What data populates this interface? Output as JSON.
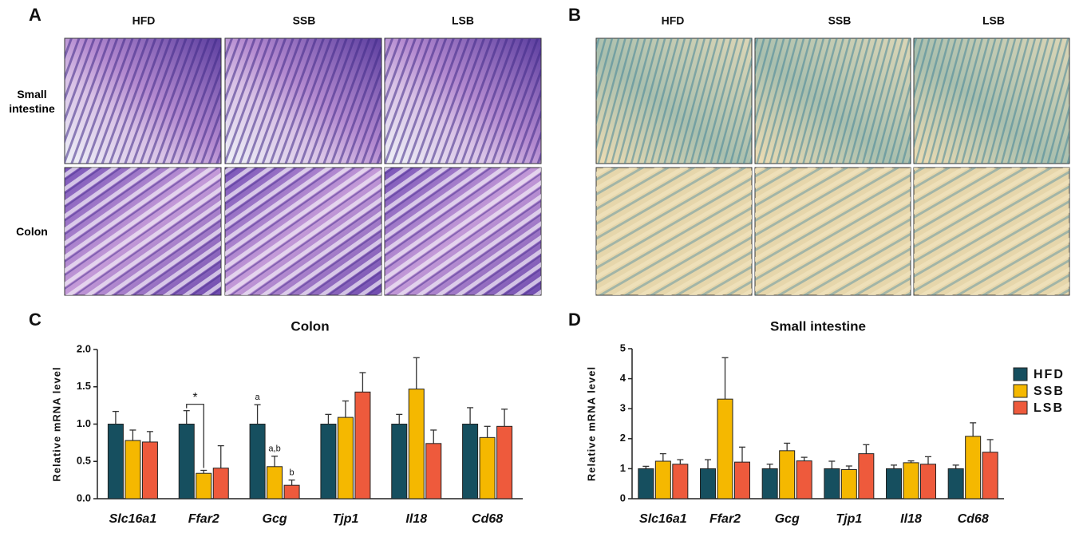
{
  "panels": [
    {
      "label": "A",
      "columns": [
        "HFD",
        "SSB",
        "LSB"
      ],
      "rows": [
        "Small intestine",
        "Colon"
      ]
    },
    {
      "label": "B",
      "columns": [
        "HFD",
        "SSB",
        "LSB"
      ]
    }
  ],
  "chart_data": [
    {
      "type": "bar",
      "panel": "C",
      "title": "Colon",
      "y_label": "Relative mRNA level",
      "categories": [
        "Slc16a1",
        "Ffar2",
        "Gcg",
        "Tjp1",
        "Il18",
        "Cd68"
      ],
      "series": [
        {
          "name": "HFD",
          "color": "#164f5f",
          "values": [
            1,
            1,
            1,
            1,
            1,
            1
          ],
          "errors": [
            0.17,
            0.18,
            0.26,
            0.13,
            0.13,
            0.22
          ]
        },
        {
          "name": "SSB",
          "color": "#f5b800",
          "values": [
            0.78,
            0.34,
            0.43,
            1.09,
            1.47,
            0.82
          ],
          "errors": [
            0.14,
            0.04,
            0.14,
            0.22,
            0.42,
            0.15
          ]
        },
        {
          "name": "LSB",
          "color": "#ee5a3c",
          "values": [
            0.76,
            0.41,
            0.18,
            1.43,
            0.74,
            0.97
          ],
          "errors": [
            0.14,
            0.3,
            0.07,
            0.26,
            0.18,
            0.23
          ]
        }
      ],
      "ylim": [
        0,
        2
      ],
      "yticks": [
        {
          "value": 0,
          "label": "0.0"
        },
        0.5,
        {
          "value": 1,
          "label": "1.0"
        },
        1.5,
        {
          "value": 2,
          "label": "2.0"
        }
      ],
      "annotations": [
        {
          "text": "a",
          "category": "Gcg",
          "series": "HFD"
        },
        {
          "text": "a,b",
          "category": "Gcg",
          "series": "SSB"
        },
        {
          "text": "b",
          "category": "Gcg",
          "series": "LSB"
        }
      ],
      "significance": [
        {
          "text": "*",
          "category": "Ffar2",
          "between": [
            "HFD",
            "SSB"
          ]
        }
      ]
    },
    {
      "type": "bar",
      "panel": "D",
      "title": "Small intestine",
      "y_label": "Relative mRNA level",
      "categories": [
        "Slc16a1",
        "Ffar2",
        "Gcg",
        "Tjp1",
        "Il18",
        "Cd68"
      ],
      "series": [
        {
          "name": "HFD",
          "color": "#164f5f",
          "values": [
            1,
            1,
            1,
            1,
            1,
            1
          ],
          "errors": [
            0.08,
            0.3,
            0.15,
            0.25,
            0.12,
            0.12
          ]
        },
        {
          "name": "SSB",
          "color": "#f5b800",
          "values": [
            1.25,
            3.32,
            1.6,
            0.97,
            1.2,
            2.08
          ],
          "errors": [
            0.25,
            1.38,
            0.25,
            0.12,
            0.06,
            0.45
          ]
        },
        {
          "name": "LSB",
          "color": "#ee5a3c",
          "values": [
            1.15,
            1.22,
            1.26,
            1.5,
            1.15,
            1.55
          ],
          "errors": [
            0.15,
            0.5,
            0.12,
            0.3,
            0.25,
            0.42
          ]
        }
      ],
      "ylim": [
        0,
        5
      ],
      "yticks": [
        0,
        1,
        2,
        3,
        4,
        5
      ],
      "legend": "right"
    }
  ]
}
